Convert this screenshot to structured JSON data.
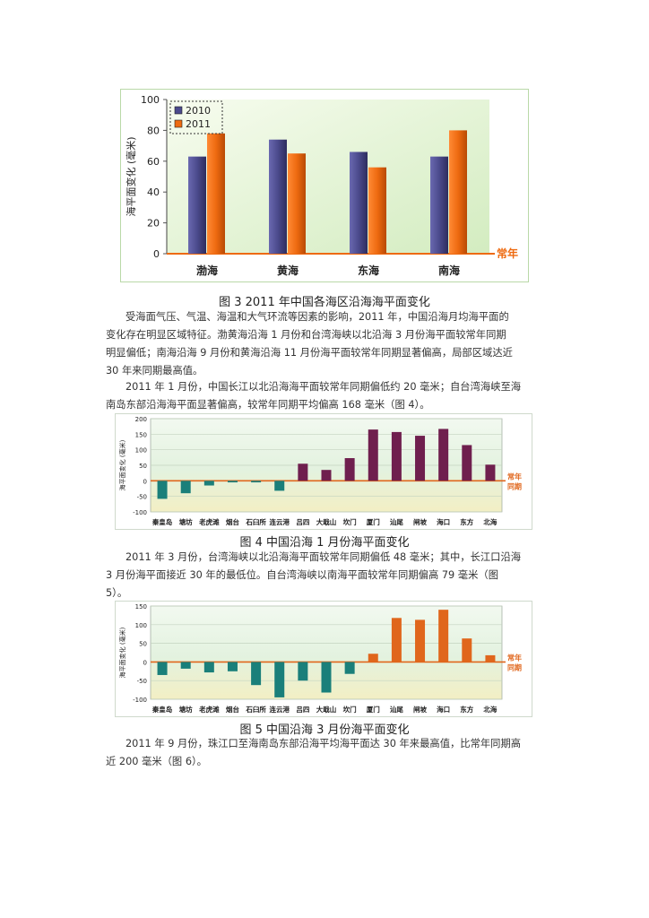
{
  "fig3": {
    "caption": "图 3 2011 年中国各海区沿海海平面变化",
    "chart_data": {
      "type": "bar",
      "categories": [
        "渤海",
        "黄海",
        "东海",
        "南海"
      ],
      "series": [
        {
          "name": "2010",
          "values": [
            63,
            74,
            66,
            63
          ]
        },
        {
          "name": "2011",
          "values": [
            78,
            65,
            56,
            80
          ]
        }
      ],
      "ylabel": "海平面变化 (毫米)",
      "ylim": [
        0,
        100
      ],
      "yticks": [
        0,
        20,
        40,
        60,
        80,
        100
      ],
      "baseline_label": "常年",
      "legend": "top-left",
      "colors": {
        "2010": "#4b4a8c",
        "2011": "#ee6a10"
      }
    }
  },
  "para1": {
    "lines": [
      "受海面气压、气温、海温和大气环流等因素的影响，2011 年，中国沿海月均海平面的",
      "变化存在明显区域特征。渤黄海沿海 1 月份和台湾海峡以北沿海 3 月份海平面较常年同期",
      "明显偏低；南海沿海 9 月份和黄海沿海 11 月份海平面较常年同期显著偏高，局部区域达近",
      "30 年来同期最高值。"
    ]
  },
  "para2": {
    "lines": [
      "2011 年 1 月份，中国长江以北沿海海平面较常年同期偏低约 20 毫米；自台湾海峡至海",
      "南岛东部沿海海平面显著偏高，较常年同期平均偏高 168 毫米（图 4）。"
    ]
  },
  "fig4": {
    "caption": "图 4 中国沿海 1 月份海平面变化",
    "chart_data": {
      "type": "bar",
      "categories": [
        "秦皇岛",
        "塘坊",
        "老虎滩",
        "烟台",
        "石臼所",
        "连云港",
        "吕四",
        "大戢山",
        "坎门",
        "厦门",
        "汕尾",
        "闸坡",
        "海口",
        "东方",
        "北海"
      ],
      "values": [
        -58,
        -40,
        -15,
        -5,
        -5,
        -32,
        55,
        35,
        73,
        165,
        157,
        145,
        167,
        115,
        52
      ],
      "ylabel": "海平面变化 (毫米)",
      "ylim": [
        -100,
        200
      ],
      "yticks": [
        -100,
        -50,
        0,
        50,
        100,
        150,
        200
      ],
      "baseline_label": "常年同期",
      "colors": {
        "positive": "#6f1f4e",
        "negative": "#1a7f7a"
      }
    }
  },
  "para3": {
    "lines": [
      "2011 年 3 月份，台湾海峡以北沿海海平面较常年同期偏低 48 毫米；其中，长江口沿海",
      "3 月份海平面接近 30 年的最低位。自台湾海峡以南海平面较常年同期偏高 79 毫米（图",
      "5）。"
    ]
  },
  "fig5": {
    "caption": "图 5 中国沿海 3 月份海平面变化",
    "chart_data": {
      "type": "bar",
      "categories": [
        "秦皇岛",
        "塘坊",
        "老虎滩",
        "烟台",
        "石臼所",
        "连云港",
        "吕四",
        "大戢山",
        "坎门",
        "厦门",
        "汕尾",
        "闸坡",
        "海口",
        "东方",
        "北海"
      ],
      "values": [
        -35,
        -18,
        -28,
        -25,
        -62,
        -95,
        -50,
        -82,
        -32,
        22,
        118,
        113,
        140,
        63,
        18
      ],
      "ylabel": "海平面变化 (毫米)",
      "ylim": [
        -100,
        150
      ],
      "yticks": [
        -100,
        -50,
        0,
        50,
        100,
        150
      ],
      "baseline_label": "常年同期",
      "colors": {
        "positive": "#e0661c",
        "negative": "#1a7f7a"
      }
    }
  },
  "para4": {
    "lines": [
      "2011 年 9 月份，珠江口至海南岛东部沿海平均海平面达 30 年来最高值，比常年同期高",
      "近 200 毫米（图 6）。"
    ]
  }
}
